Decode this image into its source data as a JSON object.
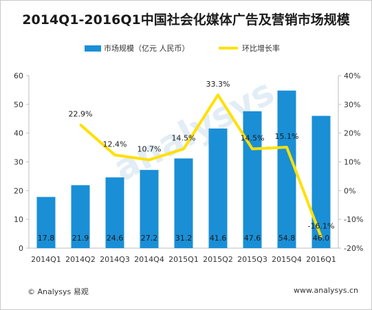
{
  "title": "2014Q1-2016Q1中国社会化媒体广告及营销市场规模",
  "footer": {
    "copyright": "© Analysys 易观",
    "url": "www.analysys.cn"
  },
  "colors": {
    "bar": "#1a8fd6",
    "line": "#ffe000",
    "axis": "#bdbdbd",
    "text": "#333333"
  },
  "chart_data": {
    "type": "bar",
    "categories": [
      "2014Q1",
      "2014Q2",
      "2014Q3",
      "2014Q4",
      "2015Q1",
      "2015Q2",
      "2015Q3",
      "2015Q4",
      "2016Q1"
    ],
    "series": [
      {
        "name": "市场规模（亿元 人民币）",
        "type": "bar",
        "axis": "left",
        "values": [
          17.8,
          21.9,
          24.6,
          27.2,
          31.2,
          41.6,
          47.6,
          54.8,
          46.0
        ],
        "labels": [
          "17.8",
          "21.9",
          "24.6",
          "27.2",
          "31.2",
          "41.6",
          "47.6",
          "54.8",
          "46.0"
        ]
      },
      {
        "name": "环比增长率",
        "type": "line",
        "axis": "right",
        "values": [
          null,
          22.9,
          12.4,
          10.7,
          14.5,
          33.3,
          14.5,
          15.1,
          -16.1
        ],
        "labels": [
          "",
          "22.9%",
          "12.4%",
          "10.7%",
          "14.5%",
          "33.3%",
          "14.5%",
          "15.1%",
          "-16.1%"
        ]
      }
    ],
    "y_left": {
      "min": 0,
      "max": 60,
      "ticks": [
        "0",
        "10",
        "20",
        "30",
        "40",
        "50",
        "60"
      ]
    },
    "y_right": {
      "min": -20,
      "max": 40,
      "ticks": [
        "-20%",
        "-10%",
        "0%",
        "10%",
        "20%",
        "30%",
        "40%"
      ]
    },
    "legend_position": "top",
    "grid": false
  }
}
